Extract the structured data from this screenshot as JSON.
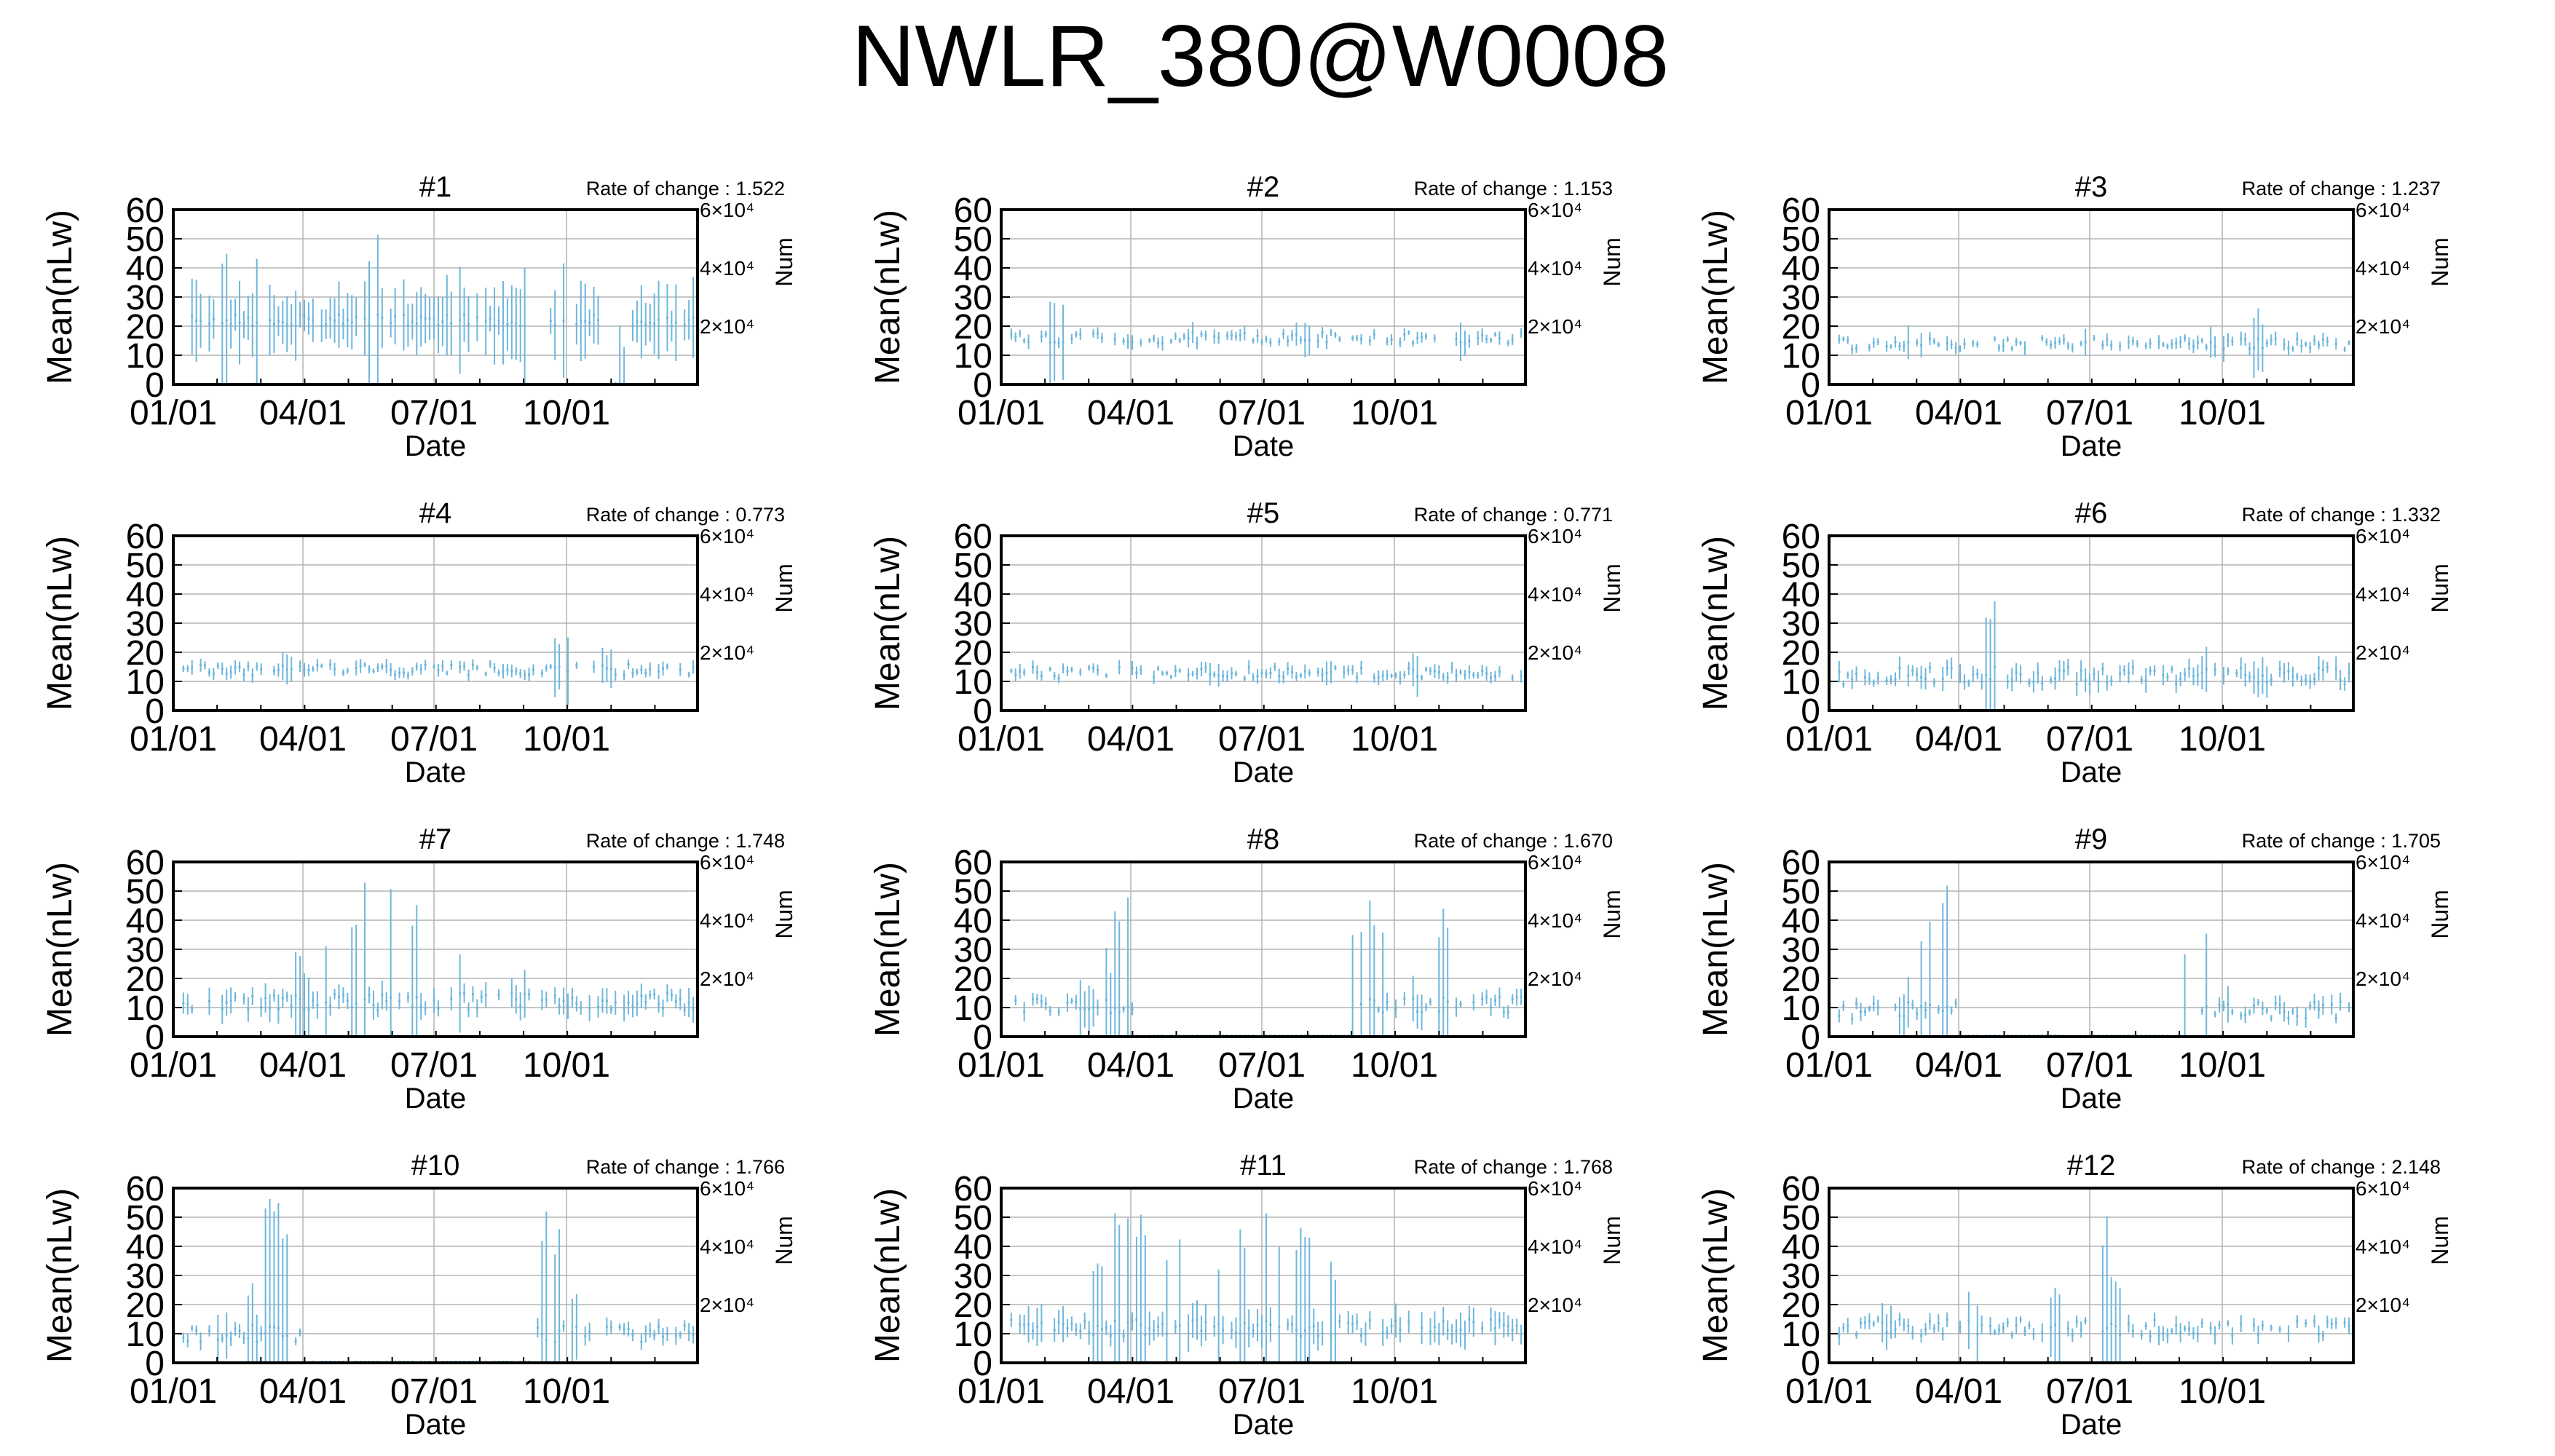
{
  "figure": {
    "title": "NWLR_380@W0008"
  },
  "colors": {
    "series": "#6fb7dc",
    "frame": "#000000",
    "grid": "#b4b4b4",
    "background": "#ffffff"
  },
  "axes": {
    "xlabel": "Date",
    "ylabel": "Mean(nLw)",
    "y2label": "Num",
    "rate_prefix": "Rate of change : ",
    "x_ticks": [
      "01/01",
      "04/01",
      "07/01",
      "10/01"
    ],
    "y_ticks": [
      "0",
      "10",
      "20",
      "30",
      "40",
      "50",
      "60"
    ],
    "y2_ticks": [
      "2×10⁴",
      "4×10⁴",
      "6×10⁴"
    ],
    "ylim": [
      0,
      60
    ],
    "xlim_days": [
      1,
      365
    ],
    "x_tick_days": [
      1,
      91,
      182,
      274
    ],
    "grid": true
  },
  "chart_data": [
    {
      "type": "errorbar",
      "title": "#1",
      "rate_of_change": "1.522",
      "profile": {
        "base": 22,
        "spread": 17,
        "noise": 2,
        "zeros": [
          [
            300,
            318
          ]
        ],
        "spikes": [
          [
            35,
            34
          ],
          [
            140,
            36
          ],
          [
            60,
            30
          ],
          [
            200,
            30
          ],
          [
            250,
            26
          ],
          [
            270,
            28
          ],
          [
            315,
            20
          ]
        ]
      }
    },
    {
      "type": "errorbar",
      "title": "#2",
      "rate_of_change": "1.153",
      "profile": {
        "base": 16,
        "spread": 3,
        "noise": 2,
        "zeros": [],
        "spikes": [
          [
            40,
            15
          ],
          [
            310,
            12
          ],
          [
            130,
            5
          ],
          [
            210,
            6
          ],
          [
            325,
            7
          ]
        ]
      }
    },
    {
      "type": "errorbar",
      "title": "#3",
      "rate_of_change": "1.237",
      "profile": {
        "base": 14,
        "spread": 3,
        "noise": 2,
        "zeros": [],
        "spikes": [
          [
            300,
            11
          ],
          [
            60,
            6
          ],
          [
            180,
            5
          ],
          [
            270,
            6
          ]
        ]
      }
    },
    {
      "type": "errorbar",
      "title": "#4",
      "rate_of_change": "0.773",
      "profile": {
        "base": 14,
        "spread": 3,
        "noise": 2,
        "zeros": [],
        "spikes": [
          [
            270,
            12
          ],
          [
            80,
            6
          ],
          [
            300,
            7
          ]
        ]
      }
    },
    {
      "type": "errorbar",
      "title": "#5",
      "rate_of_change": "0.771",
      "profile": {
        "base": 13,
        "spread": 3,
        "noise": 2,
        "zeros": [],
        "spikes": [
          [
            290,
            8
          ],
          [
            150,
            5
          ],
          [
            230,
            5
          ]
        ]
      }
    },
    {
      "type": "errorbar",
      "title": "#6",
      "rate_of_change": "1.332",
      "profile": {
        "base": 12,
        "spread": 5,
        "noise": 3,
        "zeros": [],
        "spikes": [
          [
            115,
            27
          ],
          [
            215,
            12
          ],
          [
            260,
            8
          ],
          [
            300,
            8
          ]
        ]
      }
    },
    {
      "type": "errorbar",
      "title": "#7",
      "rate_of_change": "1.748",
      "profile": {
        "base": 12,
        "spread": 6,
        "noise": 3,
        "zeros": [],
        "spikes": [
          [
            90,
            15
          ],
          [
            110,
            22
          ],
          [
            130,
            45
          ],
          [
            150,
            40
          ],
          [
            165,
            42
          ],
          [
            180,
            30
          ],
          [
            200,
            20
          ],
          [
            230,
            15
          ],
          [
            250,
            12
          ]
        ]
      }
    },
    {
      "type": "errorbar",
      "title": "#8",
      "rate_of_change": "1.670",
      "profile": {
        "base": 11,
        "spread": 4,
        "noise": 3,
        "zeros": [
          [
            95,
            245
          ]
        ],
        "spikes": [
          [
            60,
            10
          ],
          [
            75,
            20
          ],
          [
            85,
            48
          ],
          [
            250,
            38
          ],
          [
            262,
            40
          ],
          [
            310,
            35
          ],
          [
            290,
            8
          ]
        ]
      }
    },
    {
      "type": "errorbar",
      "title": "#9",
      "rate_of_change": "1.705",
      "profile": {
        "base": 9,
        "spread": 4,
        "noise": 3,
        "zeros": [
          [
            90,
            250
          ]
        ],
        "spikes": [
          [
            55,
            10
          ],
          [
            70,
            30
          ],
          [
            85,
            45
          ],
          [
            253,
            35
          ],
          [
            265,
            38
          ],
          [
            280,
            10
          ]
        ]
      }
    },
    {
      "type": "errorbar",
      "title": "#10",
      "rate_of_change": "1.766",
      "profile": {
        "base": 10,
        "spread": 4,
        "noise": 3,
        "zeros": [
          [
            90,
            250
          ]
        ],
        "spikes": [
          [
            35,
            12
          ],
          [
            55,
            15
          ],
          [
            70,
            45
          ],
          [
            80,
            48
          ],
          [
            255,
            45
          ],
          [
            265,
            40
          ],
          [
            280,
            12
          ]
        ]
      }
    },
    {
      "type": "errorbar",
      "title": "#11",
      "rate_of_change": "1.768",
      "profile": {
        "base": 12,
        "spread": 8,
        "noise": 3,
        "zeros": [],
        "spikes": [
          [
            70,
            30
          ],
          [
            85,
            45
          ],
          [
            100,
            40
          ],
          [
            120,
            30
          ],
          [
            150,
            25
          ],
          [
            170,
            40
          ],
          [
            190,
            45
          ],
          [
            210,
            40
          ],
          [
            230,
            30
          ]
        ]
      }
    },
    {
      "type": "errorbar",
      "title": "#12",
      "rate_of_change": "2.148",
      "profile": {
        "base": 12,
        "spread": 4,
        "noise": 3,
        "zeros": [],
        "spikes": [
          [
            190,
            40
          ],
          [
            200,
            20
          ],
          [
            160,
            14
          ],
          [
            100,
            10
          ],
          [
            40,
            8
          ]
        ]
      }
    }
  ]
}
